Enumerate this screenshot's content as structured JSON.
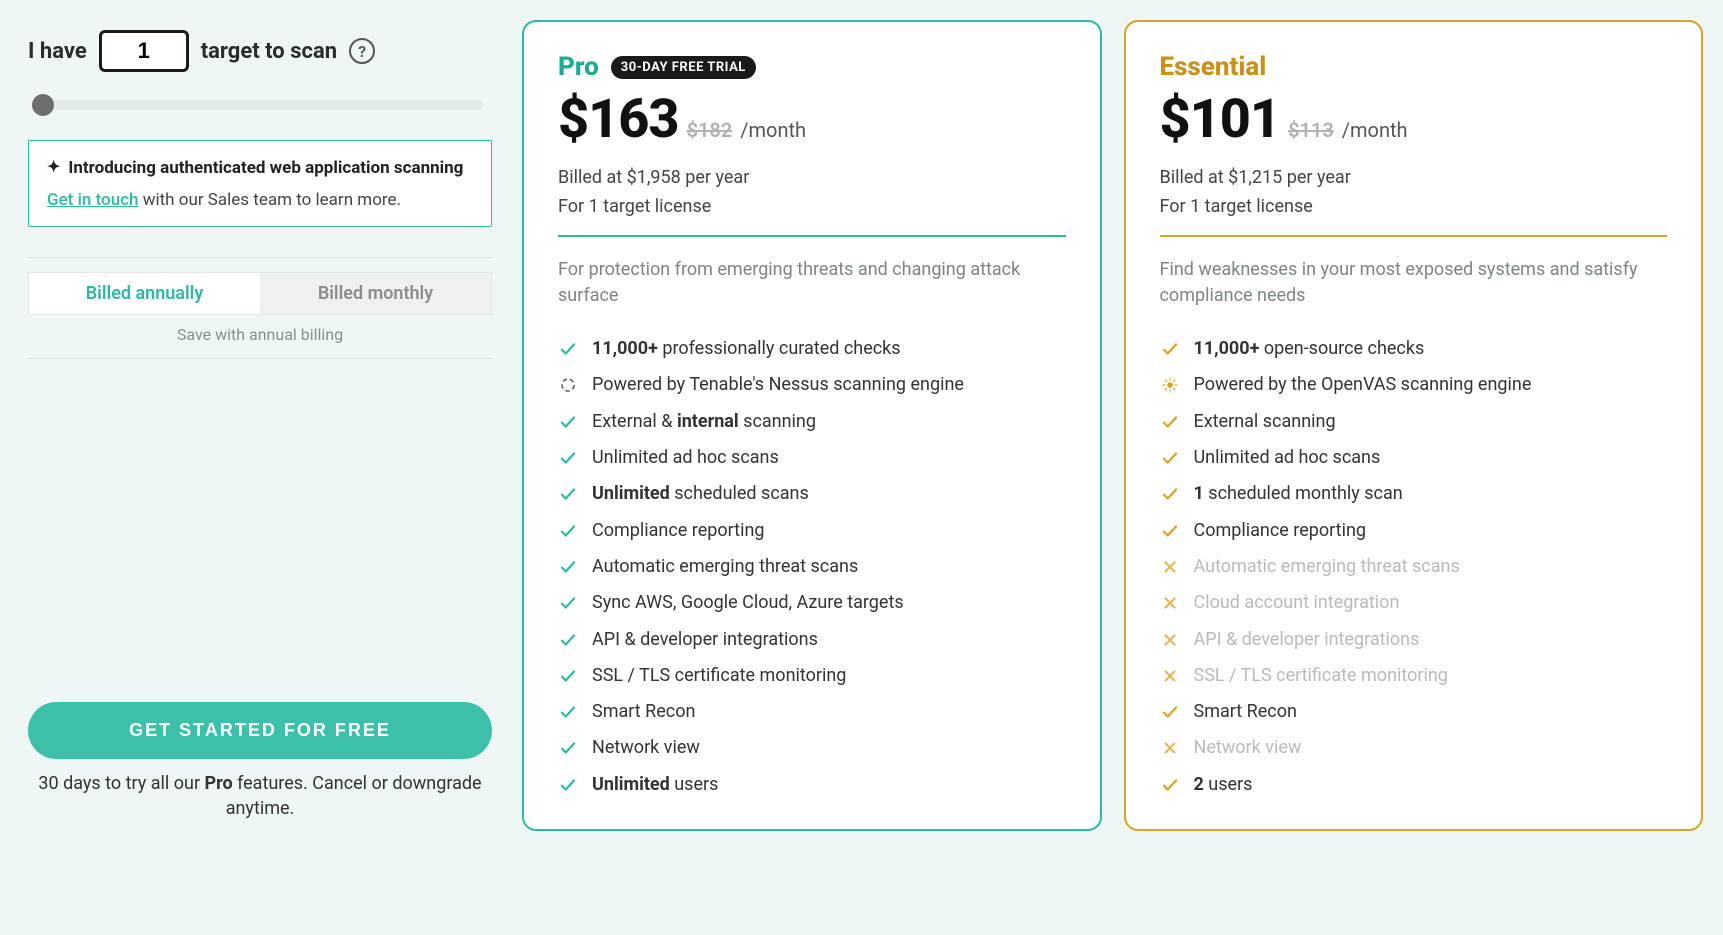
{
  "colors": {
    "pro_accent": "#2fb9a3",
    "essential_accent": "#d9a326",
    "background": "#eef7f6",
    "text_primary": "#2c2c2c",
    "text_muted": "#7d8582",
    "disabled_text": "#b7bcba",
    "cta_bg": "#3cc0aa"
  },
  "left": {
    "prefix": "I have",
    "target_value": "1",
    "suffix": "target to scan",
    "promo_title": "Introducing authenticated web application scanning",
    "promo_link_text": "Get in touch",
    "promo_link_rest": " with our Sales team to learn more.",
    "billing_annual": "Billed annually",
    "billing_monthly": "Billed monthly",
    "billing_active": "annual",
    "save_note": "Save with annual billing",
    "cta_label": "GET STARTED FOR FREE",
    "cta_sub_pre": "30 days to try all our ",
    "cta_sub_bold": "Pro",
    "cta_sub_post": " features. Cancel or downgrade anytime."
  },
  "plans": {
    "pro": {
      "name": "Pro",
      "trial_badge": "30-DAY FREE TRIAL",
      "price": "$163",
      "price_strike": "$182",
      "period": "/month",
      "billed": "Billed at $1,958 per year",
      "license": "For 1 target license",
      "description": "For protection from emerging threats and changing attack surface",
      "features": [
        {
          "icon": "check",
          "html": "<strong>11,000+</strong> professionally curated checks",
          "enabled": true
        },
        {
          "icon": "spinner",
          "html": "Powered by Tenable's Nessus scanning engine",
          "enabled": true
        },
        {
          "icon": "check",
          "html": "External & <strong>internal</strong> scanning",
          "enabled": true
        },
        {
          "icon": "check",
          "html": "Unlimited ad hoc scans",
          "enabled": true
        },
        {
          "icon": "check",
          "html": "<strong>Unlimited</strong> scheduled scans",
          "enabled": true
        },
        {
          "icon": "check",
          "html": "Compliance reporting",
          "enabled": true
        },
        {
          "icon": "check",
          "html": "Automatic emerging threat scans",
          "enabled": true
        },
        {
          "icon": "check",
          "html": "Sync AWS, Google Cloud, Azure targets",
          "enabled": true
        },
        {
          "icon": "check",
          "html": "API & developer integrations",
          "enabled": true
        },
        {
          "icon": "check",
          "html": "SSL / TLS certificate monitoring",
          "enabled": true
        },
        {
          "icon": "check",
          "html": "Smart Recon",
          "enabled": true
        },
        {
          "icon": "check",
          "html": "Network view",
          "enabled": true
        },
        {
          "icon": "check",
          "html": "<strong>Unlimited</strong> users",
          "enabled": true
        }
      ]
    },
    "essential": {
      "name": "Essential",
      "price": "$101",
      "price_strike": "$113",
      "period": "/month",
      "billed": "Billed at $1,215 per year",
      "license": "For 1 target license",
      "description": "Find weaknesses in your most exposed systems and satisfy compliance needs",
      "features": [
        {
          "icon": "check",
          "html": "<strong>11,000+</strong> open-source checks",
          "enabled": true
        },
        {
          "icon": "burst",
          "html": "Powered by the OpenVAS scanning engine",
          "enabled": true
        },
        {
          "icon": "check",
          "html": "External scanning",
          "enabled": true
        },
        {
          "icon": "check",
          "html": "Unlimited ad hoc scans",
          "enabled": true
        },
        {
          "icon": "check",
          "html": "<strong>1</strong> scheduled monthly scan",
          "enabled": true
        },
        {
          "icon": "check",
          "html": "Compliance reporting",
          "enabled": true
        },
        {
          "icon": "cross",
          "html": "Automatic emerging threat scans",
          "enabled": false
        },
        {
          "icon": "cross",
          "html": "Cloud account integration",
          "enabled": false
        },
        {
          "icon": "cross",
          "html": "API & developer integrations",
          "enabled": false
        },
        {
          "icon": "cross",
          "html": "SSL / TLS certificate monitoring",
          "enabled": false
        },
        {
          "icon": "check",
          "html": "Smart Recon",
          "enabled": true
        },
        {
          "icon": "cross",
          "html": "Network view",
          "enabled": false
        },
        {
          "icon": "check",
          "html": "<strong>2</strong> users",
          "enabled": true
        }
      ]
    }
  }
}
